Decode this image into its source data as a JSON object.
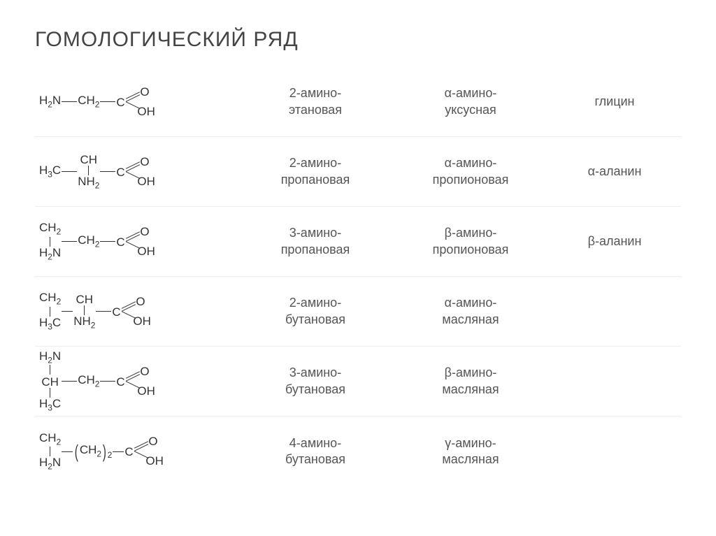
{
  "title": "ГОМОЛОГИЧЕСКИЙ РЯД",
  "colors": {
    "background": "#ffffff",
    "text": "#333333",
    "name_text": "#555555",
    "border": "#eeeeee"
  },
  "fonts": {
    "title_size": 30,
    "body_size": 18,
    "struct_size": 17
  },
  "columns": [
    "structure",
    "systematic_name",
    "traditional_name",
    "trivial_name"
  ],
  "rows": [
    {
      "structure": "H2N—CH2—COOH",
      "systematic_l1": "2-амино-",
      "systematic_l2": "этановая",
      "traditional_l1": "α-амино-",
      "traditional_l2": "уксусная",
      "trivial": "глицин"
    },
    {
      "structure": "H3C—CH(NH2)—COOH",
      "systematic_l1": "2-амино-",
      "systematic_l2": "пропановая",
      "traditional_l1": "α-амино-",
      "traditional_l2": "пропионовая",
      "trivial": "α-аланин"
    },
    {
      "structure": "H2N—CH2—CH2—COOH",
      "systematic_l1": "3-амино-",
      "systematic_l2": "пропановая",
      "traditional_l1": "β-амино-",
      "traditional_l2": "пропионовая",
      "trivial": "β-аланин"
    },
    {
      "structure": "H3C—CH2—CH(NH2)—COOH",
      "systematic_l1": "2-амино-",
      "systematic_l2": "бутановая",
      "traditional_l1": "α-амино-",
      "traditional_l2": "масляная",
      "trivial": ""
    },
    {
      "structure": "H3C—CH(NH2)—CH2—COOH",
      "systematic_l1": "3-амино-",
      "systematic_l2": "бутановая",
      "traditional_l1": "β-амино-",
      "traditional_l2": "масляная",
      "trivial": ""
    },
    {
      "structure": "H2N—CH2—(CH2)2—COOH",
      "systematic_l1": "4-амино-",
      "systematic_l2": "бутановая",
      "traditional_l1": "γ-амино-",
      "traditional_l2": "масляная",
      "trivial": ""
    }
  ],
  "labels": {
    "O": "O",
    "OH": "OH",
    "C": "C",
    "NH2": "NH2",
    "H2N": "H2N",
    "CH2": "CH2",
    "CH": "CH",
    "H3C": "H3C",
    "paren_sub": "2"
  }
}
